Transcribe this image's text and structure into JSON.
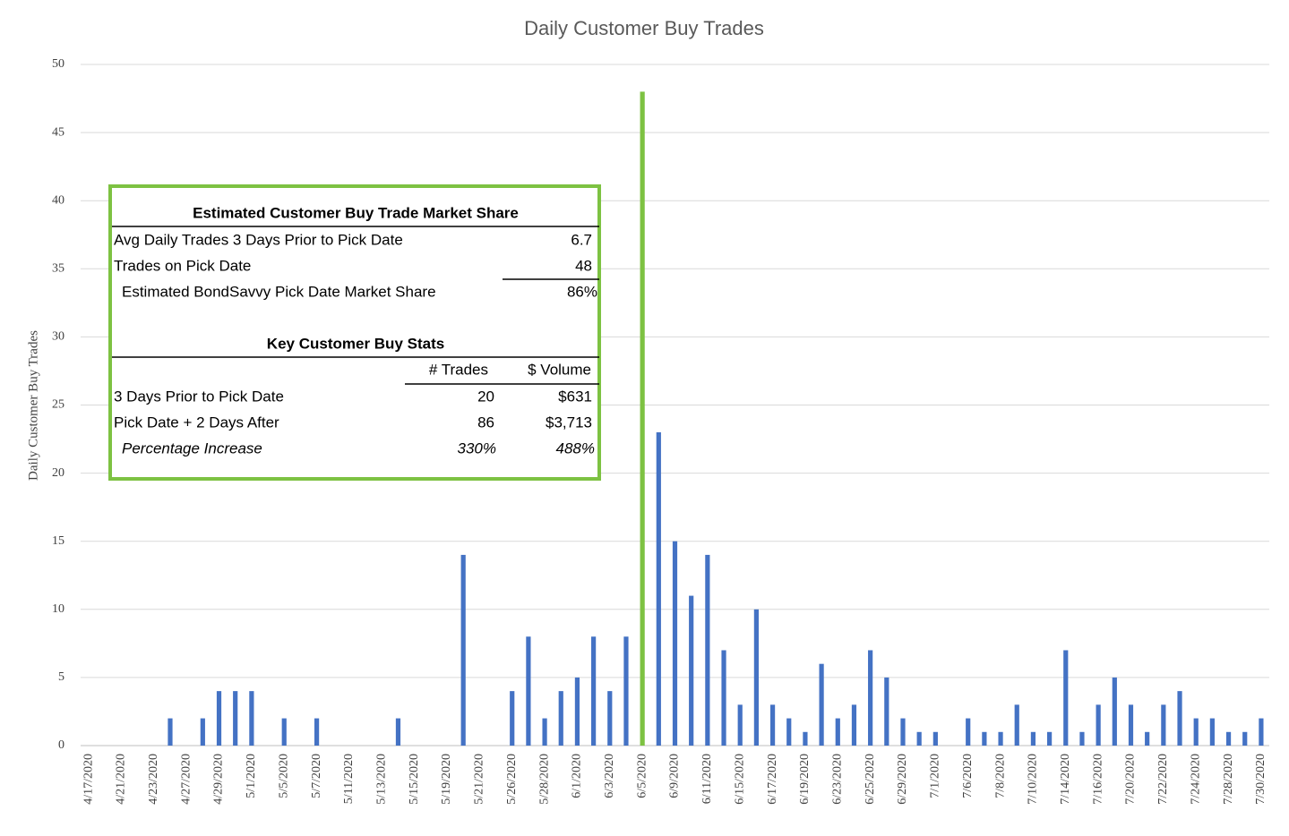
{
  "chart_data": {
    "type": "bar",
    "title": "Daily Customer Buy Trades",
    "y_label": "Daily Customer Buy Trades",
    "categories": [
      "4/17/2020",
      null,
      "4/21/2020",
      null,
      "4/23/2020",
      null,
      "4/27/2020",
      null,
      "4/29/2020",
      null,
      "5/1/2020",
      null,
      "5/5/2020",
      null,
      "5/7/2020",
      null,
      "5/11/2020",
      null,
      "5/13/2020",
      null,
      "5/15/2020",
      null,
      "5/19/2020",
      null,
      "5/21/2020",
      null,
      "5/26/2020",
      null,
      "5/28/2020",
      null,
      "6/1/2020",
      null,
      "6/3/2020",
      null,
      "6/5/2020",
      null,
      "6/9/2020",
      null,
      "6/11/2020",
      null,
      "6/15/2020",
      null,
      "6/17/2020",
      null,
      "6/19/2020",
      null,
      "6/23/2020",
      null,
      "6/25/2020",
      null,
      "6/29/2020",
      null,
      "7/1/2020",
      null,
      "7/6/2020",
      null,
      "7/8/2020",
      null,
      "7/10/2020",
      null,
      "7/14/2020",
      null,
      "7/16/2020",
      null,
      "7/20/2020",
      null,
      "7/22/2020",
      null,
      "7/24/2020",
      null,
      "7/28/2020",
      null,
      "7/30/2020"
    ],
    "values": [
      0,
      0,
      0,
      0,
      0,
      2,
      0,
      2,
      4,
      4,
      4,
      0,
      2,
      0,
      2,
      0,
      0,
      0,
      0,
      2,
      0,
      0,
      0,
      14,
      0,
      0,
      4,
      8,
      2,
      4,
      5,
      8,
      4,
      8,
      48,
      23,
      15,
      11,
      14,
      7,
      3,
      10,
      3,
      2,
      1,
      6,
      2,
      3,
      7,
      5,
      2,
      1,
      1,
      0,
      2,
      1,
      1,
      3,
      1,
      1,
      7,
      1,
      3,
      5,
      3,
      1,
      3,
      4,
      2,
      2,
      1,
      1,
      2
    ],
    "color": "#4472c4",
    "highlight_index": 34,
    "highlight_color": "#7dc242",
    "ylim": [
      0,
      50
    ],
    "yticks": [
      0,
      5,
      10,
      15,
      20,
      25,
      30,
      35,
      40,
      45,
      50
    ],
    "grid": true
  },
  "inset": {
    "section1_title": "Estimated Customer Buy Trade Market Share",
    "section1_rows": [
      [
        "Avg Daily Trades 3 Days Prior to Pick Date",
        "6.7"
      ],
      [
        "Trades on Pick Date",
        "48"
      ],
      [
        "Estimated BondSavvy Pick Date Market Share",
        "86%"
      ]
    ],
    "section2_title": "Key Customer Buy Stats",
    "section2_header": [
      "# Trades",
      "$ Volume"
    ],
    "section2_rows": [
      [
        "3 Days Prior to Pick Date",
        "20",
        "$631"
      ],
      [
        "Pick Date + 2 Days After",
        "86",
        "$3,713"
      ],
      [
        "Percentage Increase",
        "330%",
        "488%"
      ]
    ]
  }
}
